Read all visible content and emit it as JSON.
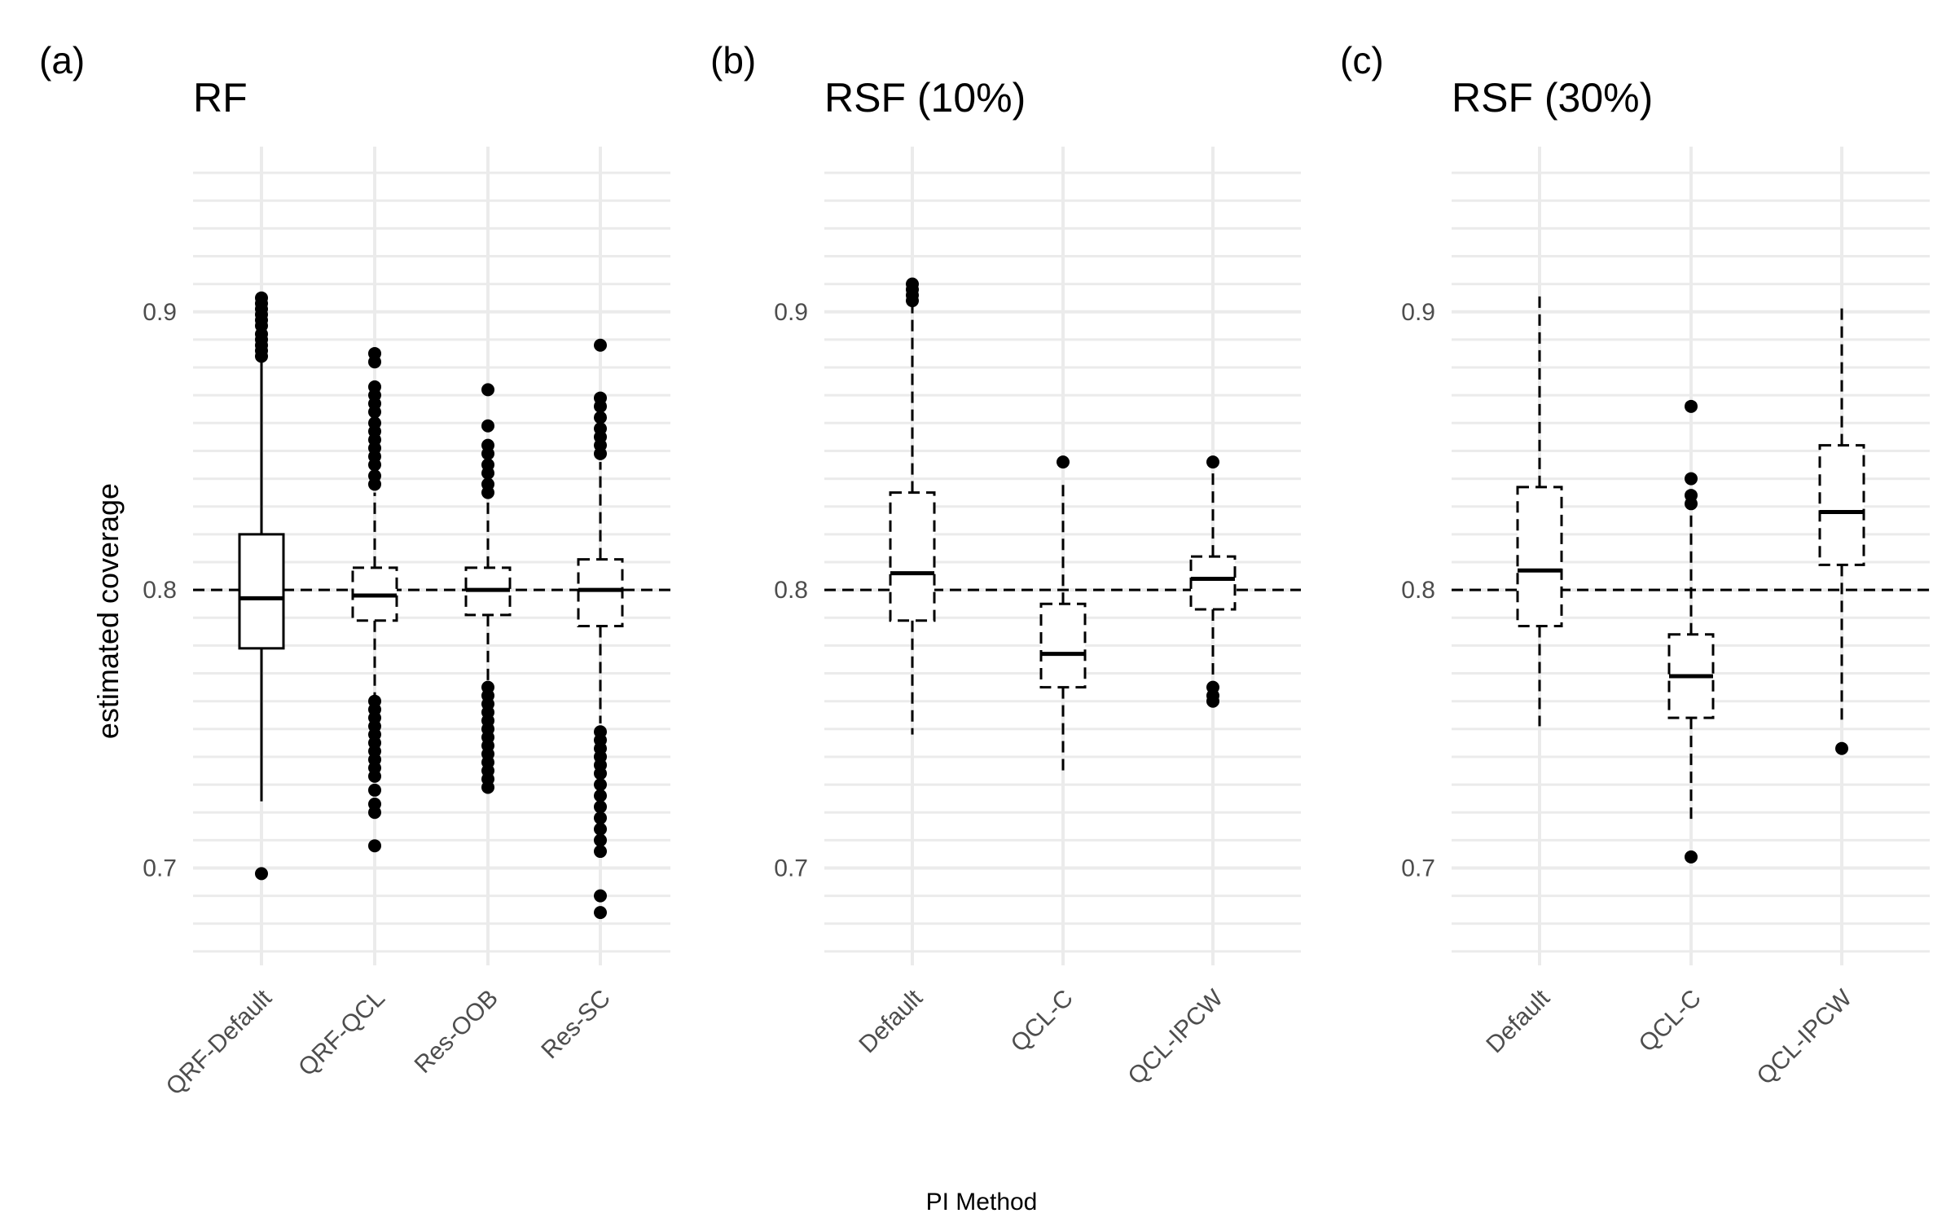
{
  "figure": {
    "x_axis_title": "PI Method",
    "y_axis_title": "estimated coverage"
  },
  "chart_data": [
    {
      "type": "box",
      "panel_label": "(a)",
      "title": "RF",
      "categories": [
        "QRF-Default",
        "QRF-QCL",
        "Res-OOB",
        "Res-SC"
      ],
      "ylim": [
        0.665,
        0.955
      ],
      "yticks": [
        0.7,
        0.8,
        0.9
      ],
      "yticklabels": [
        "0.7",
        "0.8",
        "0.9"
      ],
      "reference_line": 0.8,
      "boxes": [
        {
          "q1": 0.779,
          "median": 0.797,
          "q3": 0.82,
          "whisker_low": 0.724,
          "whisker_high": 0.882,
          "whisker_style": "solid",
          "outliers": [
            0.698,
            0.884,
            0.886,
            0.888,
            0.89,
            0.892,
            0.895,
            0.897,
            0.899,
            0.901,
            0.903,
            0.905
          ]
        },
        {
          "q1": 0.789,
          "median": 0.798,
          "q3": 0.808,
          "whisker_low": 0.762,
          "whisker_high": 0.835,
          "whisker_style": "dashed",
          "outliers": [
            0.708,
            0.72,
            0.723,
            0.728,
            0.733,
            0.736,
            0.739,
            0.742,
            0.745,
            0.748,
            0.751,
            0.754,
            0.757,
            0.76,
            0.838,
            0.841,
            0.845,
            0.848,
            0.851,
            0.854,
            0.857,
            0.86,
            0.864,
            0.867,
            0.87,
            0.873,
            0.882,
            0.885
          ]
        },
        {
          "q1": 0.791,
          "median": 0.8,
          "q3": 0.808,
          "whisker_low": 0.766,
          "whisker_high": 0.832,
          "whisker_style": "dashed",
          "outliers": [
            0.729,
            0.732,
            0.735,
            0.738,
            0.741,
            0.744,
            0.747,
            0.75,
            0.753,
            0.756,
            0.759,
            0.762,
            0.765,
            0.835,
            0.838,
            0.842,
            0.845,
            0.849,
            0.852,
            0.859,
            0.872
          ]
        },
        {
          "q1": 0.787,
          "median": 0.8,
          "q3": 0.811,
          "whisker_low": 0.752,
          "whisker_high": 0.846,
          "whisker_style": "dashed",
          "outliers": [
            0.684,
            0.69,
            0.706,
            0.71,
            0.714,
            0.718,
            0.722,
            0.726,
            0.73,
            0.734,
            0.737,
            0.74,
            0.743,
            0.746,
            0.749,
            0.849,
            0.852,
            0.855,
            0.858,
            0.862,
            0.866,
            0.869,
            0.888
          ]
        }
      ]
    },
    {
      "type": "box",
      "panel_label": "(b)",
      "title": "RSF (10%)",
      "categories": [
        "Default",
        "QCL-C",
        "QCL-IPCW"
      ],
      "ylim": [
        0.665,
        0.955
      ],
      "yticks": [
        0.7,
        0.8,
        0.9
      ],
      "yticklabels": [
        "0.7",
        "0.8",
        "0.9"
      ],
      "reference_line": 0.8,
      "boxes": [
        {
          "q1": 0.789,
          "median": 0.806,
          "q3": 0.835,
          "whisker_low": 0.748,
          "whisker_high": 0.902,
          "whisker_style": "dashed",
          "outliers": [
            0.904,
            0.906,
            0.908,
            0.91
          ]
        },
        {
          "q1": 0.765,
          "median": 0.777,
          "q3": 0.795,
          "whisker_low": 0.733,
          "whisker_high": 0.838,
          "whisker_style": "dashed",
          "outliers": [
            0.846
          ]
        },
        {
          "q1": 0.793,
          "median": 0.804,
          "q3": 0.812,
          "whisker_low": 0.767,
          "whisker_high": 0.843,
          "whisker_style": "dashed",
          "outliers": [
            0.76,
            0.762,
            0.765,
            0.846
          ]
        }
      ]
    },
    {
      "type": "box",
      "panel_label": "(c)",
      "title": "RSF (30%)",
      "categories": [
        "Default",
        "QCL-C",
        "QCL-IPCW"
      ],
      "ylim": [
        0.665,
        0.955
      ],
      "yticks": [
        0.7,
        0.8,
        0.9
      ],
      "yticklabels": [
        "0.7",
        "0.8",
        "0.9"
      ],
      "reference_line": 0.8,
      "boxes": [
        {
          "q1": 0.787,
          "median": 0.807,
          "q3": 0.837,
          "whisker_low": 0.751,
          "whisker_high": 0.907,
          "whisker_style": "dashed",
          "outliers": []
        },
        {
          "q1": 0.754,
          "median": 0.769,
          "q3": 0.784,
          "whisker_low": 0.717,
          "whisker_high": 0.827,
          "whisker_style": "dashed",
          "outliers": [
            0.704,
            0.831,
            0.834,
            0.84,
            0.866
          ]
        },
        {
          "q1": 0.809,
          "median": 0.828,
          "q3": 0.852,
          "whisker_low": 0.751,
          "whisker_high": 0.903,
          "whisker_style": "dashed",
          "outliers": [
            0.743
          ]
        }
      ]
    }
  ]
}
